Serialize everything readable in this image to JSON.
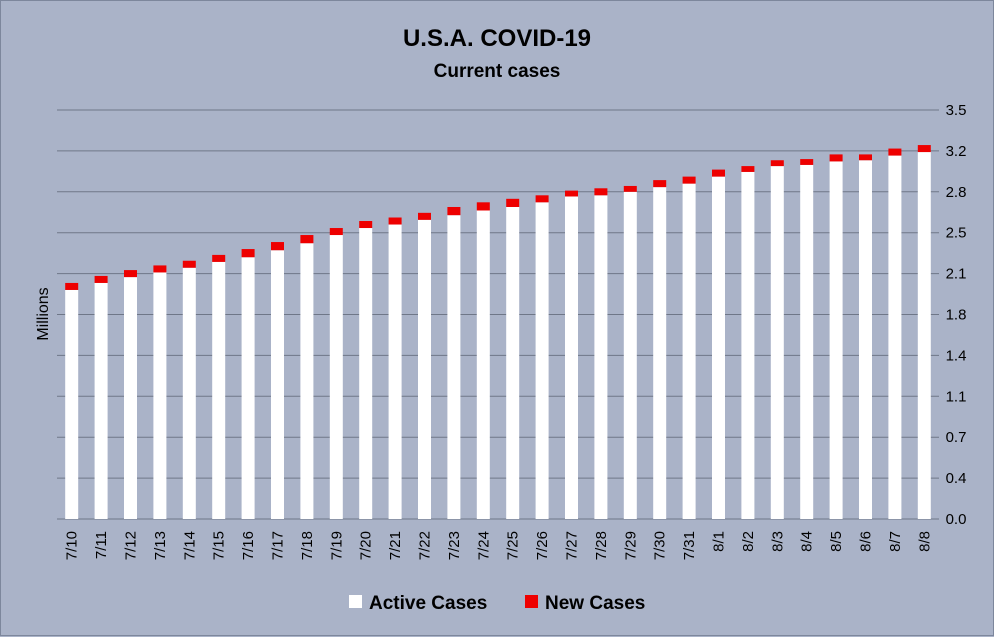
{
  "chart_data": {
    "type": "bar",
    "stacked": true,
    "title": "U.S.A. COVID-19",
    "subtitle": "Current cases",
    "ylabel": "Millions",
    "xlabel": "",
    "ylim": [
      0,
      3.5
    ],
    "yticks": [
      "0.0",
      "0.4",
      "0.7",
      "1.1",
      "1.4",
      "1.8",
      "2.1",
      "2.5",
      "2.8",
      "3.2",
      "3.5"
    ],
    "y_axis_position": "right",
    "grid": true,
    "legend_position": "bottom",
    "categories": [
      "7/10",
      "7/11",
      "7/12",
      "7/13",
      "7/14",
      "7/15",
      "7/16",
      "7/17",
      "7/18",
      "7/19",
      "7/20",
      "7/21",
      "7/22",
      "7/23",
      "7/24",
      "7/25",
      "7/26",
      "7/27",
      "7/28",
      "7/29",
      "7/30",
      "7/31",
      "8/1",
      "8/2",
      "8/3",
      "8/4",
      "8/5",
      "8/6",
      "8/7",
      "8/8"
    ],
    "series": [
      {
        "name": "Active Cases",
        "color": "#ffffff",
        "values": [
          1.96,
          2.02,
          2.07,
          2.11,
          2.15,
          2.2,
          2.24,
          2.3,
          2.36,
          2.43,
          2.49,
          2.52,
          2.56,
          2.6,
          2.64,
          2.67,
          2.71,
          2.76,
          2.77,
          2.8,
          2.84,
          2.87,
          2.93,
          2.97,
          3.02,
          3.03,
          3.06,
          3.07,
          3.11,
          3.14
        ]
      },
      {
        "name": "New Cases",
        "color": "#ee0000",
        "values": [
          0.06,
          0.06,
          0.06,
          0.06,
          0.06,
          0.06,
          0.07,
          0.07,
          0.07,
          0.06,
          0.06,
          0.06,
          0.06,
          0.07,
          0.07,
          0.07,
          0.06,
          0.05,
          0.06,
          0.05,
          0.06,
          0.06,
          0.06,
          0.05,
          0.05,
          0.05,
          0.06,
          0.05,
          0.06,
          0.06
        ]
      }
    ]
  }
}
